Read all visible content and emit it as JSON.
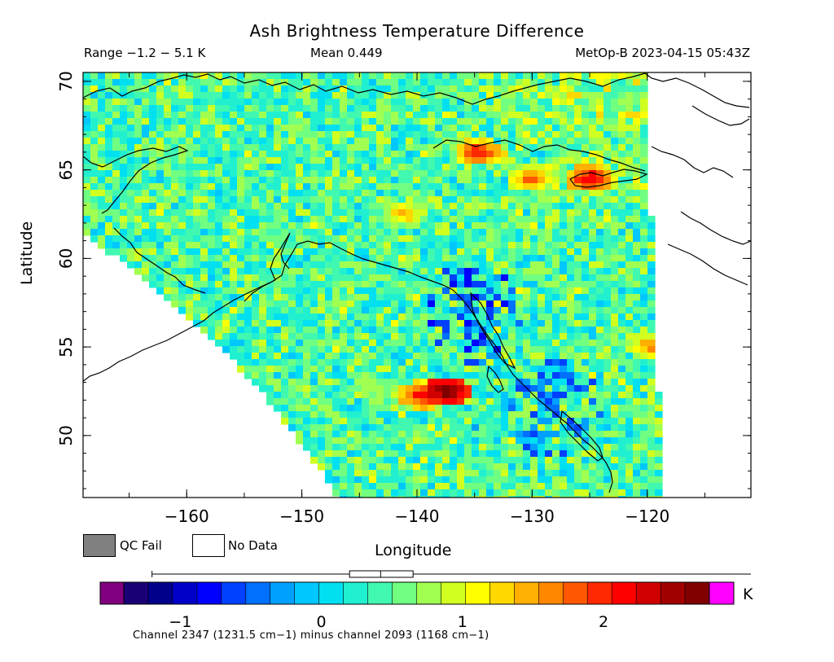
{
  "header": {
    "title": "Ash Brightness Temperature Difference",
    "range": "Range −1.2 − 5.1 K",
    "mean": "Mean 0.449",
    "satellite_time": "MetOp-B 2023-04-15 05:43Z"
  },
  "legend": {
    "qc_fail": "QC Fail",
    "no_data": "No Data",
    "qc_fail_color": "#808080",
    "no_data_color": "#ffffff"
  },
  "colorbar": {
    "unit": "K",
    "caption": "Channel 2347 (1231.5 cm−1) minus channel 2093 (1168 cm−1)",
    "range": [
      -1.4,
      2.75
    ],
    "ticks": [
      -1,
      0,
      1,
      2
    ],
    "tick_labels": [
      "−1",
      "0",
      "1",
      "2"
    ],
    "under_color": "#800080",
    "over_color": "#ff00ff",
    "colors": [
      "#1a0075",
      "#00008b",
      "#0000c8",
      "#0000ff",
      "#0040ff",
      "#0070ff",
      "#00a0ff",
      "#00c8ff",
      "#00e0f0",
      "#20f0d0",
      "#40f8b0",
      "#70ff80",
      "#a0ff50",
      "#d0ff20",
      "#ffff00",
      "#ffd800",
      "#ffb000",
      "#ff8800",
      "#ff5800",
      "#ff2800",
      "#ff0000",
      "#d00000",
      "#a00000",
      "#800000"
    ],
    "boxplot": {
      "min": -1.2,
      "q1": 0.2,
      "median": 0.42,
      "q3": 0.65,
      "max": 5.1
    }
  },
  "chart_data": {
    "type": "heatmap",
    "title": "Ash Brightness Temperature Difference",
    "xlabel": "Longitude",
    "ylabel": "Latitude",
    "xlim": [
      -169,
      -111
    ],
    "ylim": [
      46.5,
      70.5
    ],
    "x_ticks": [
      -160,
      -150,
      -140,
      -130,
      -120
    ],
    "x_tick_labels": [
      "−160",
      "−150",
      "−140",
      "−130",
      "−120"
    ],
    "y_ticks": [
      50,
      55,
      60,
      65,
      70
    ],
    "y_tick_labels": [
      "50",
      "55",
      "60",
      "65",
      "70"
    ],
    "value_range": [
      -1.2,
      5.1
    ],
    "mean": 0.449,
    "background_mean": 0.45,
    "hotspots": [
      {
        "lon": -137.5,
        "lat": 52.5,
        "value": 2.9
      },
      {
        "lon": -139.5,
        "lat": 52.3,
        "value": 2.3
      },
      {
        "lon": -134.5,
        "lat": 66.0,
        "value": 2.2
      },
      {
        "lon": -125.0,
        "lat": 64.5,
        "value": 2.4
      },
      {
        "lon": -130.0,
        "lat": 64.5,
        "value": 1.9
      },
      {
        "lon": -141.0,
        "lat": 62.5,
        "value": 1.6
      },
      {
        "lon": -119.5,
        "lat": 55.0,
        "value": 1.8
      }
    ],
    "cold_regions": [
      {
        "lon": -135.0,
        "lat": 57.0,
        "value": -0.3
      },
      {
        "lon": -128.0,
        "lat": 51.5,
        "value": -0.2
      }
    ]
  }
}
